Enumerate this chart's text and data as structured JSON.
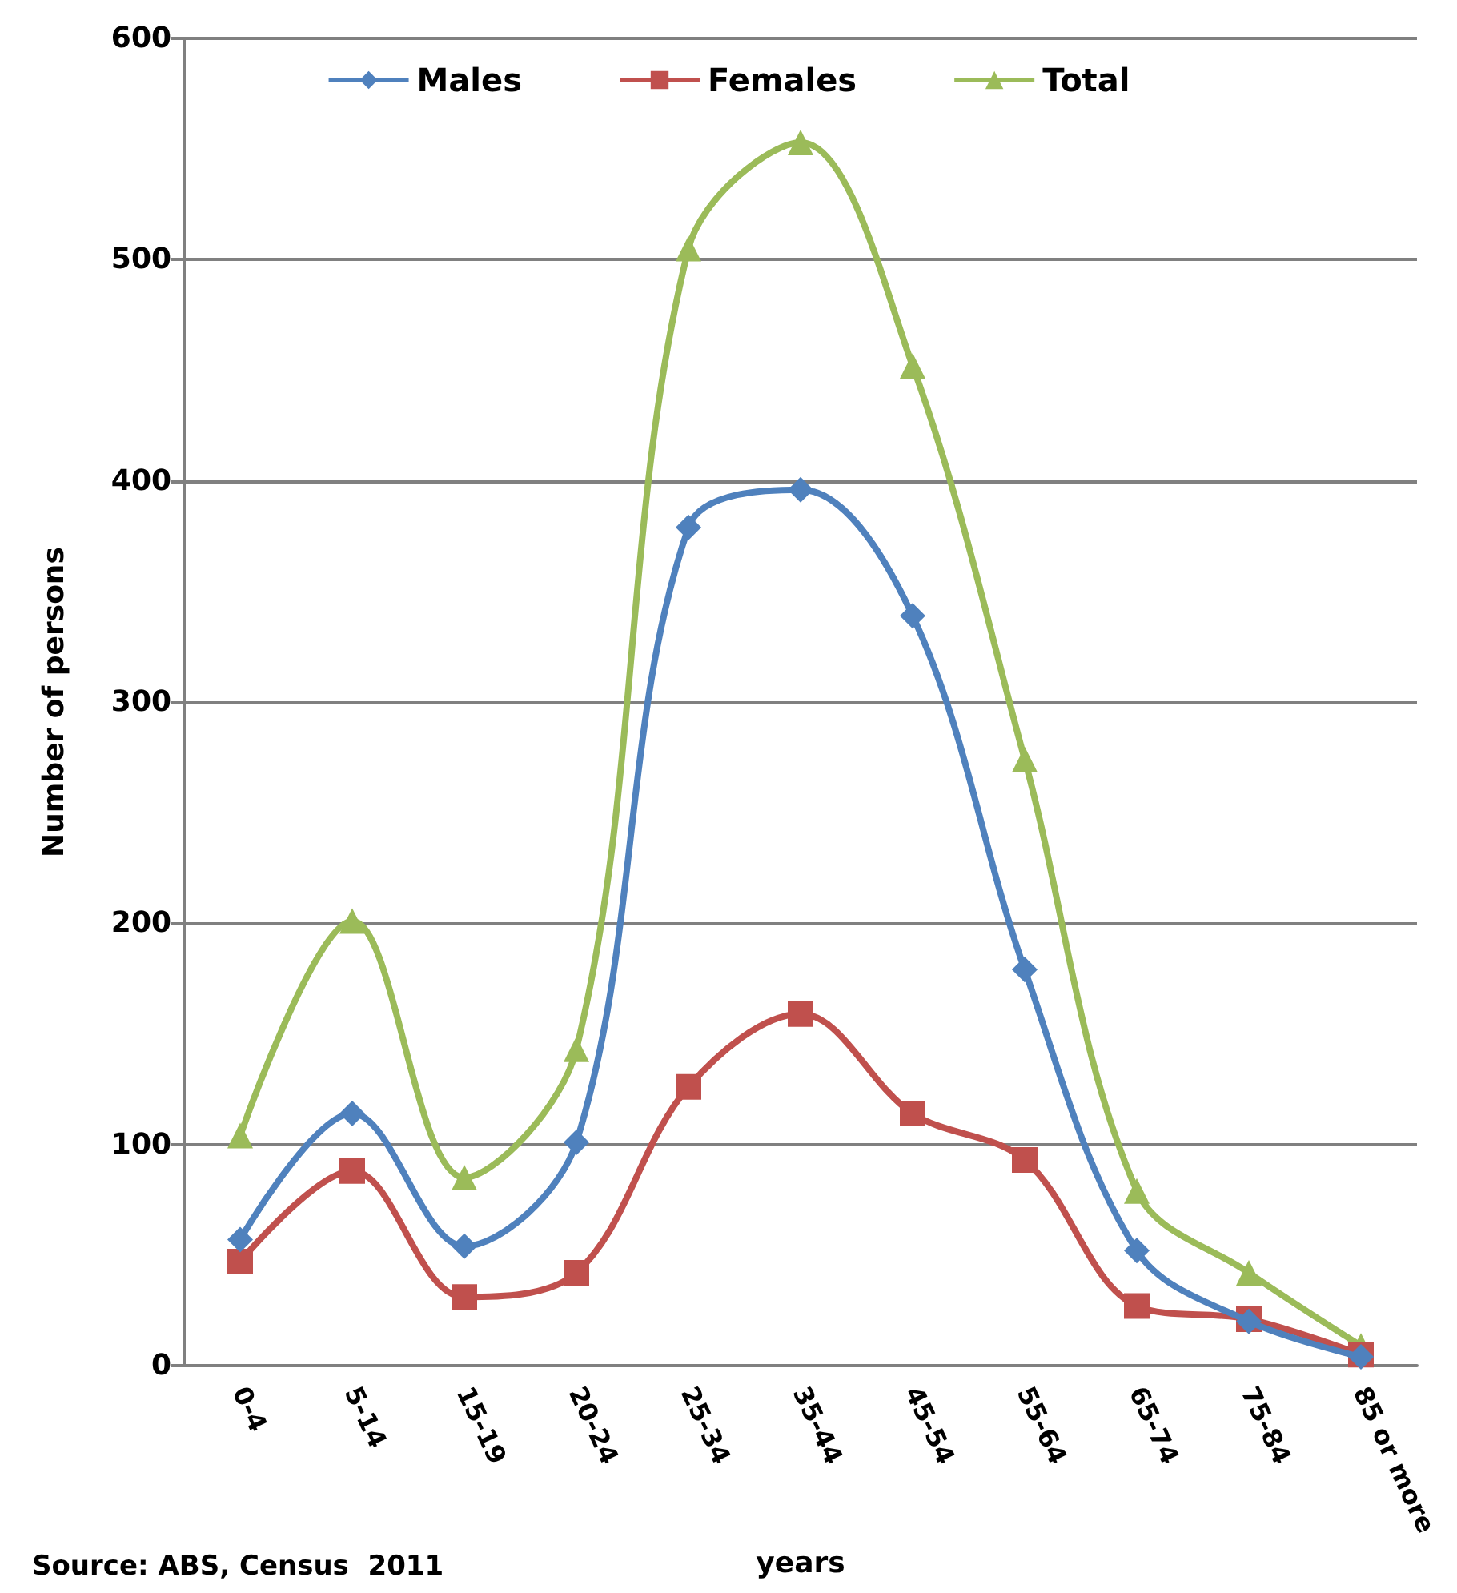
{
  "chart_data": {
    "type": "line",
    "xlabel": "years",
    "ylabel": "Number of persons",
    "annotations": [
      "Source: ABS, Census  2011"
    ],
    "categories": [
      "0-4",
      "5-14",
      "15-19",
      "20-24",
      "25-34",
      "35-44",
      "45-54",
      "55-64",
      "65-74",
      "75-84",
      "85 or more"
    ],
    "series": [
      {
        "name": "Males",
        "color": "#4f81bd",
        "marker": "diamond",
        "values": [
          57,
          114,
          54,
          101,
          379,
          396,
          339,
          179,
          52,
          20,
          4
        ]
      },
      {
        "name": "Females",
        "color": "#c0504d",
        "marker": "square",
        "values": [
          47,
          88,
          31,
          42,
          126,
          159,
          114,
          93,
          27,
          21,
          5
        ]
      },
      {
        "name": "Total",
        "color": "#9bbb59",
        "marker": "triangle",
        "values": [
          104,
          201,
          85,
          143,
          505,
          553,
          452,
          274,
          79,
          42,
          9
        ]
      }
    ],
    "ylim": [
      0,
      600
    ],
    "yticks": [
      0,
      100,
      200,
      300,
      400,
      500,
      600
    ],
    "grid": "y",
    "legend": "top"
  }
}
